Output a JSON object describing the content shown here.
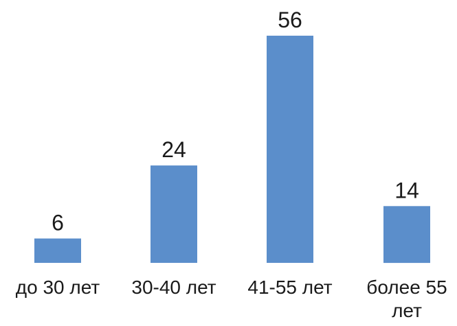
{
  "chart_data": {
    "type": "bar",
    "categories": [
      "до 30 лет",
      "30-40 лет",
      "41-55 лет",
      "более 55 лет"
    ],
    "category_lines": [
      [
        "до 30 лет"
      ],
      [
        "30-40 лет"
      ],
      [
        "41-55 лет"
      ],
      [
        "более 55",
        "лет"
      ]
    ],
    "values": [
      6,
      24,
      56,
      14
    ],
    "data_labels": [
      "6",
      "24",
      "56",
      "14"
    ],
    "title": "",
    "xlabel": "",
    "ylabel": "",
    "ylim": [
      0,
      56
    ],
    "grid": false,
    "legend": "none",
    "bar_color": "#5b8ecb"
  }
}
